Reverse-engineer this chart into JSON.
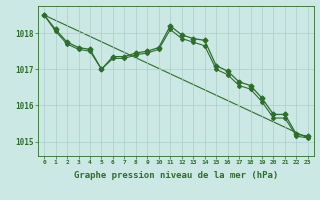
{
  "background_color": "#cce8e4",
  "grid_color": "#aacfcb",
  "line_color": "#2d6e2d",
  "xlabel": "Graphe pression niveau de la mer (hPa)",
  "xlabel_fontsize": 6.5,
  "ylim": [
    1014.6,
    1018.75
  ],
  "xlim": [
    -0.5,
    23.5
  ],
  "yticks": [
    1015,
    1016,
    1017,
    1018
  ],
  "xticks": [
    0,
    1,
    2,
    3,
    4,
    5,
    6,
    7,
    8,
    9,
    10,
    11,
    12,
    13,
    14,
    15,
    16,
    17,
    18,
    19,
    20,
    21,
    22,
    23
  ],
  "series1_x": [
    0,
    1,
    2,
    3,
    4,
    5,
    6,
    7,
    8,
    9,
    10,
    11,
    12,
    13,
    14,
    15,
    16,
    17,
    18,
    19,
    20,
    21,
    22,
    23
  ],
  "series1_y": [
    1018.5,
    1018.1,
    1017.75,
    1017.6,
    1017.55,
    1017.0,
    1017.35,
    1017.35,
    1017.45,
    1017.5,
    1017.6,
    1018.2,
    1017.95,
    1017.85,
    1017.8,
    1017.1,
    1016.95,
    1016.65,
    1016.55,
    1016.2,
    1015.75,
    1015.75,
    1015.2,
    1015.15
  ],
  "series2_x": [
    0,
    1,
    2,
    3,
    4,
    5,
    6,
    7,
    8,
    9,
    10,
    11,
    12,
    13,
    14,
    15,
    16,
    17,
    18,
    19,
    20,
    21,
    22,
    23
  ],
  "series2_y": [
    1018.5,
    1018.05,
    1017.7,
    1017.55,
    1017.5,
    1017.0,
    1017.3,
    1017.3,
    1017.4,
    1017.45,
    1017.55,
    1018.1,
    1017.85,
    1017.75,
    1017.65,
    1017.0,
    1016.85,
    1016.55,
    1016.45,
    1016.1,
    1015.65,
    1015.65,
    1015.15,
    1015.1
  ],
  "series3_x": [
    0,
    23
  ],
  "series3_y": [
    1018.5,
    1015.1
  ]
}
